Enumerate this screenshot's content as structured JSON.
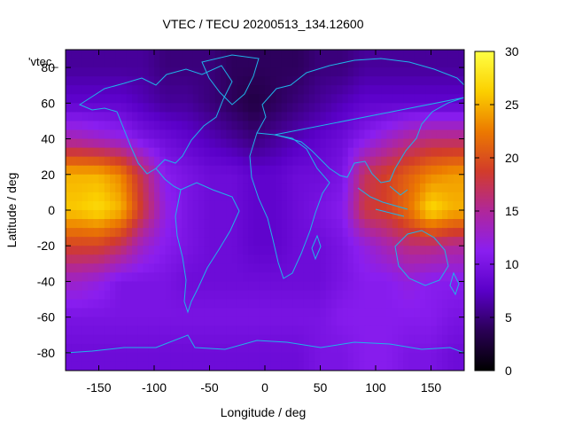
{
  "chart_data": {
    "type": "heatmap",
    "title": "VTEC / TECU 20200513_134.12600",
    "xlabel": "Longitude / deg",
    "ylabel": "Latitude / deg",
    "series_label": "'vtec_",
    "xlim": [
      -180,
      180
    ],
    "ylim": [
      -90,
      90
    ],
    "x_ticks": [
      -150,
      -100,
      -50,
      0,
      50,
      100,
      150
    ],
    "y_ticks": [
      -80,
      -60,
      -40,
      -20,
      0,
      20,
      40,
      60,
      80
    ],
    "colorbar": {
      "min": 0,
      "max": 30,
      "ticks": [
        0,
        5,
        10,
        15,
        20,
        25,
        30
      ],
      "palette": [
        "#000000",
        "#2a0055",
        "#5a00c8",
        "#8a1ef0",
        "#b0279a",
        "#d23c2a",
        "#ec7a00",
        "#fbd000",
        "#ffff44"
      ]
    },
    "value_grid": {
      "lon_step": 20,
      "lat_step": 20,
      "lon_centers": [
        -170,
        -150,
        -130,
        -110,
        -90,
        -70,
        -50,
        -30,
        -10,
        10,
        30,
        50,
        70,
        90,
        110,
        130,
        150,
        170
      ],
      "lat_centers": [
        80,
        60,
        40,
        20,
        0,
        -20,
        -40,
        -60,
        -80
      ],
      "values": [
        [
          6,
          6,
          6,
          6,
          5,
          5,
          5,
          4,
          4,
          4,
          4,
          5,
          5,
          6,
          6,
          6,
          6,
          6
        ],
        [
          8,
          8,
          8,
          7,
          6,
          6,
          5,
          4,
          3,
          4,
          5,
          6,
          7,
          8,
          8,
          8,
          8,
          8
        ],
        [
          14,
          13,
          12,
          10,
          9,
          8,
          7,
          6,
          5,
          6,
          7,
          8,
          9,
          11,
          13,
          15,
          16,
          16
        ],
        [
          25,
          25,
          23,
          17,
          11,
          10,
          9,
          9,
          8,
          8,
          9,
          9,
          10,
          17,
          19,
          21,
          23,
          24
        ],
        [
          26,
          27,
          25,
          18,
          12,
          10,
          9,
          9,
          8,
          8,
          9,
          10,
          11,
          18,
          19,
          22,
          27,
          25
        ],
        [
          19,
          19,
          17,
          13,
          11,
          10,
          9,
          9,
          8,
          8,
          9,
          9,
          10,
          12,
          14,
          16,
          16,
          15
        ],
        [
          13,
          12,
          10,
          10,
          10,
          9,
          9,
          9,
          9,
          9,
          9,
          9,
          10,
          11,
          11,
          12,
          11,
          11
        ],
        [
          10,
          10,
          10,
          10,
          10,
          10,
          10,
          10,
          10,
          10,
          10,
          10,
          11,
          11,
          11,
          11,
          11,
          10
        ],
        [
          9,
          9,
          9,
          9,
          9,
          9,
          9,
          9,
          9,
          9,
          9,
          10,
          10,
          11,
          11,
          10,
          10,
          9
        ]
      ]
    }
  }
}
